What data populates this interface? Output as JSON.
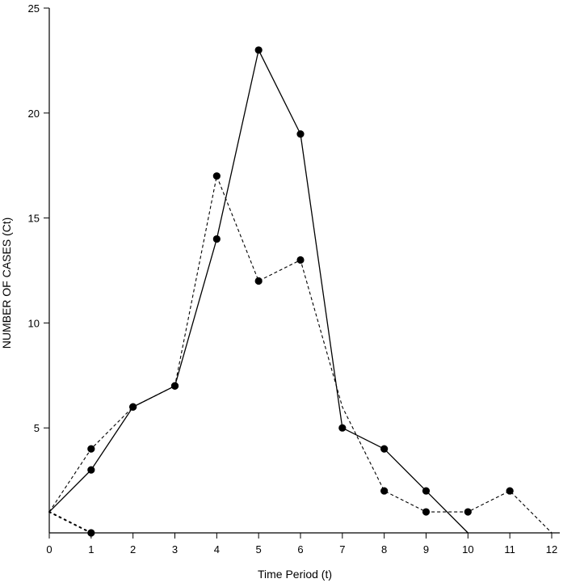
{
  "chart_data": {
    "type": "line",
    "title": "",
    "xlabel": "Time Period (t)",
    "ylabel": "NUMBER OF CASES (Ct)",
    "xlim": [
      0,
      12
    ],
    "ylim": [
      0,
      25
    ],
    "x_ticks": [
      0,
      1,
      2,
      3,
      4,
      5,
      6,
      7,
      8,
      9,
      10,
      11,
      12
    ],
    "y_ticks": [
      5,
      10,
      15,
      20,
      25
    ],
    "grid": false,
    "legend": "none",
    "series": [
      {
        "style": "solid",
        "color": "#000000",
        "points": [
          [
            0,
            1
          ],
          [
            1,
            3
          ],
          [
            2,
            6
          ],
          [
            3,
            7
          ],
          [
            4,
            14
          ],
          [
            5,
            23
          ],
          [
            6,
            19
          ],
          [
            7,
            5
          ],
          [
            8,
            4
          ],
          [
            9,
            2
          ],
          [
            10,
            0
          ]
        ],
        "markers": [
          1,
          2,
          3,
          4,
          5,
          6,
          7,
          8,
          9
        ]
      },
      {
        "style": "dashed",
        "color": "#000000",
        "points": [
          [
            0,
            1
          ],
          [
            1,
            4
          ],
          [
            2,
            6
          ],
          [
            3,
            7
          ],
          [
            4,
            17
          ],
          [
            5,
            12
          ],
          [
            6,
            13
          ],
          [
            7,
            6
          ],
          [
            8,
            2
          ],
          [
            9,
            1
          ],
          [
            10,
            1
          ],
          [
            11,
            2
          ],
          [
            12,
            0
          ]
        ],
        "markers": [
          1,
          2,
          3,
          4,
          5,
          6,
          8,
          9,
          10,
          11
        ]
      },
      {
        "style": "dotted",
        "color": "#000000",
        "points": [
          [
            0,
            1
          ],
          [
            1,
            0
          ]
        ],
        "markers": [
          1
        ]
      }
    ]
  }
}
